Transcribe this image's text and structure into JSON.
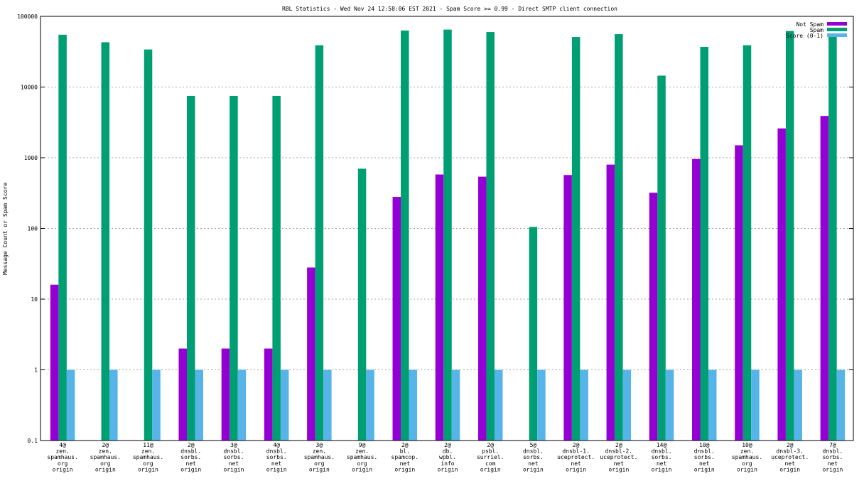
{
  "chart_data": {
    "type": "bar",
    "title": "RBL Statistics - Wed Nov 24 12:58:06 EST 2021 - Spam Score >= 0.99 - Direct SMTP client connection",
    "ylabel": "Message Count or Spam Score",
    "xlabel": "",
    "yscale": "log",
    "ylim": [
      0.1,
      100000
    ],
    "yticks": [
      "0.1",
      "1",
      "10",
      "100",
      "1000",
      "10000",
      "100000"
    ],
    "grid": true,
    "legend_position": "top-right",
    "categories": [
      [
        "4@",
        "zen.",
        "spamhaus.",
        "org",
        "origin"
      ],
      [
        "2@",
        "zen.",
        "spamhaus.",
        "org",
        "origin"
      ],
      [
        "11@",
        "zen.",
        "spamhaus.",
        "org",
        "origin"
      ],
      [
        "2@",
        "dnsbl.",
        "sorbs.",
        "net",
        "origin"
      ],
      [
        "3@",
        "dnsbl.",
        "sorbs.",
        "net",
        "origin"
      ],
      [
        "4@",
        "dnsbl.",
        "sorbs.",
        "net",
        "origin"
      ],
      [
        "3@",
        "zen.",
        "spamhaus.",
        "org",
        "origin"
      ],
      [
        "9@",
        "zen.",
        "spamhaus.",
        "org",
        "origin"
      ],
      [
        "2@",
        "bl.",
        "spamcop.",
        "net",
        "origin"
      ],
      [
        "2@",
        "db.",
        "wpbl.",
        "info",
        "origin"
      ],
      [
        "2@",
        "psbl.",
        "surriel.",
        "com",
        "origin"
      ],
      [
        "5@",
        "dnsbl.",
        "sorbs.",
        "net",
        "origin"
      ],
      [
        "2@",
        "dnsbl-1.",
        "uceprotect.",
        "net",
        "origin"
      ],
      [
        "2@",
        "dnsbl-2.",
        "uceprotect.",
        "net",
        "origin"
      ],
      [
        "14@",
        "dnsbl.",
        "sorbs.",
        "net",
        "origin"
      ],
      [
        "10@",
        "dnsbl.",
        "sorbs.",
        "net",
        "origin"
      ],
      [
        "10@",
        "zen.",
        "spamhaus.",
        "org",
        "origin"
      ],
      [
        "2@",
        "dnsbl-3.",
        "uceprotect.",
        "net",
        "origin"
      ],
      [
        "7@",
        "dnsbl.",
        "sorbs.",
        "net",
        "origin"
      ]
    ],
    "series": [
      {
        "name": "Not Spam",
        "color": "#9400d3",
        "values": [
          16,
          null,
          null,
          2,
          2,
          2,
          28,
          null,
          280,
          580,
          540,
          null,
          570,
          800,
          320,
          960,
          1500,
          2600,
          3900
        ]
      },
      {
        "name": "Spam",
        "color": "#009e73",
        "values": [
          55000,
          43000,
          34000,
          7500,
          7500,
          7500,
          39000,
          700,
          63000,
          65000,
          60000,
          105,
          51000,
          56000,
          14500,
          37000,
          39000,
          62000,
          53000
        ]
      },
      {
        "name": "Score (0-1)",
        "color": "#56b4e9",
        "values": [
          1,
          1,
          1,
          1,
          1,
          1,
          1,
          1,
          1,
          1,
          1,
          1,
          1,
          1,
          1,
          1,
          1,
          1,
          1
        ]
      }
    ]
  }
}
